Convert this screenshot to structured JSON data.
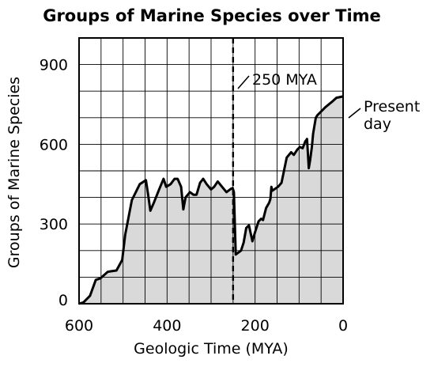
{
  "chart_data": {
    "type": "area",
    "title": "Groups of Marine Species over Time",
    "xlabel": "Geologic Time (MYA)",
    "ylabel": "Groups of Marine Species",
    "xlim": [
      600,
      0
    ],
    "ylim": [
      0,
      1000
    ],
    "x_reversed": true,
    "x_ticks": [
      "600",
      "400",
      "200",
      "0"
    ],
    "y_ticks": [
      "0",
      "300",
      "600",
      "900"
    ],
    "grid": true,
    "colors": {
      "fill": "#d9d9d9",
      "line": "#000000",
      "grid": "#000000"
    },
    "series": [
      {
        "x": [
          600,
          590,
          575,
          562,
          552,
          535,
          528,
          515,
          502,
          495,
          480,
          462,
          448,
          443,
          438,
          430,
          418,
          408,
          402,
          392,
          383,
          376,
          368,
          363,
          358,
          348,
          340,
          333,
          325,
          318,
          310,
          300,
          293,
          285,
          275,
          265,
          255,
          251,
          250,
          248,
          244,
          232,
          226,
          220,
          214,
          206,
          200,
          192,
          186,
          182,
          175,
          168,
          165,
          163,
          161,
          148,
          140,
          128,
          118,
          112,
          104,
          98,
          92,
          86,
          82,
          78,
          75,
          71,
          68,
          62,
          58,
          52,
          40,
          25,
          15,
          0
        ],
        "y": [
          0,
          5,
          30,
          90,
          95,
          120,
          122,
          125,
          165,
          260,
          390,
          450,
          465,
          410,
          350,
          380,
          430,
          470,
          440,
          450,
          470,
          470,
          440,
          355,
          400,
          420,
          410,
          410,
          455,
          470,
          450,
          430,
          440,
          460,
          440,
          420,
          432,
          435,
          430,
          420,
          185,
          200,
          230,
          285,
          295,
          235,
          270,
          310,
          320,
          315,
          360,
          380,
          395,
          440,
          425,
          440,
          455,
          550,
          570,
          560,
          580,
          590,
          585,
          610,
          620,
          510,
          540,
          590,
          640,
          700,
          710,
          720,
          740,
          760,
          775,
          780
        ]
      }
    ],
    "marker_line": {
      "x": 250,
      "style": "dashed"
    },
    "annotations": [
      {
        "text": "250 MYA",
        "x": 250,
        "y": 840
      },
      {
        "text": "Present",
        "x": 0,
        "y": 750
      },
      {
        "text": "day",
        "x": 0,
        "y": 700
      }
    ]
  }
}
